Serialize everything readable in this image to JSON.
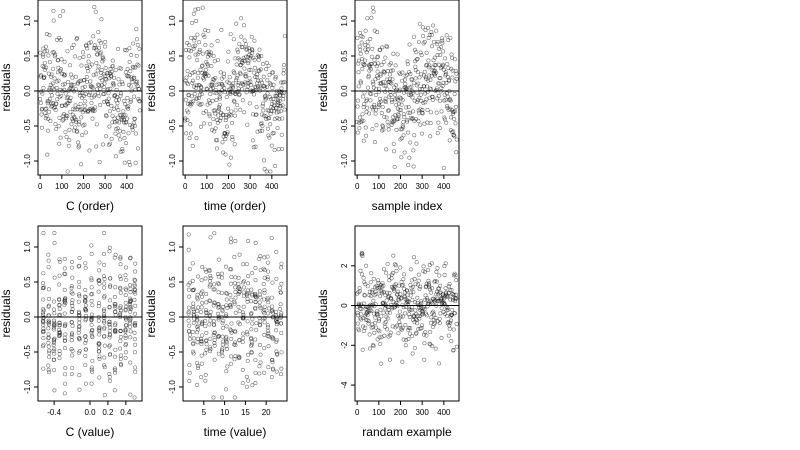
{
  "figure": {
    "background": "#ffffff",
    "point_color": "#000000",
    "point_opacity": 0.55
  },
  "chart_data": [
    {
      "type": "scatter",
      "xlabel": "C (order)",
      "ylabel": "residuals",
      "xlim": [
        -10,
        470
      ],
      "ylim": [
        -1.2,
        1.3
      ],
      "xticks": [
        0,
        100,
        200,
        300,
        400
      ],
      "xtick_labels": [
        "0",
        "100",
        "200",
        "300",
        "400"
      ],
      "yticks": [
        -1.0,
        -0.5,
        0.0,
        0.5,
        1.0
      ],
      "ytick_labels": [
        "-1.0",
        "-0.5",
        "0.0",
        "0.5",
        "1.0"
      ],
      "hline": 0,
      "grid": false,
      "generator": {
        "kind": "order",
        "n": 450,
        "xmax": 460,
        "seed": 11,
        "amp": 0.18,
        "freq": 2.2,
        "noise": 0.42,
        "ymin": -1.15,
        "ymax": 1.2
      }
    },
    {
      "type": "scatter",
      "xlabel": "time (order)",
      "ylabel": "residuals",
      "xlim": [
        -10,
        470
      ],
      "ylim": [
        -1.2,
        1.3
      ],
      "xticks": [
        0,
        100,
        200,
        300,
        400
      ],
      "xtick_labels": [
        "0",
        "100",
        "200",
        "300",
        "400"
      ],
      "yticks": [
        -1.0,
        -0.5,
        0.0,
        0.5,
        1.0
      ],
      "ytick_labels": [
        "-1.0",
        "-0.5",
        "0.0",
        "0.5",
        "1.0"
      ],
      "hline": 0,
      "grid": false,
      "generator": {
        "kind": "order",
        "n": 450,
        "xmax": 460,
        "seed": 23,
        "amp": 0.3,
        "freq": 2.0,
        "noise": 0.38,
        "ymin": -1.15,
        "ymax": 1.2
      }
    },
    {
      "type": "scatter",
      "xlabel": "sample index",
      "ylabel": "residuals",
      "xlim": [
        -10,
        470
      ],
      "ylim": [
        -1.2,
        1.3
      ],
      "xticks": [
        0,
        100,
        200,
        300,
        400
      ],
      "xtick_labels": [
        "0",
        "100",
        "200",
        "300",
        "400"
      ],
      "yticks": [
        -1.0,
        -0.5,
        0.0,
        0.5,
        1.0
      ],
      "ytick_labels": [
        "-1.0",
        "-0.5",
        "0.0",
        "0.5",
        "1.0"
      ],
      "hline": 0,
      "grid": false,
      "generator": {
        "kind": "order",
        "n": 450,
        "xmax": 460,
        "seed": 37,
        "amp": 0.22,
        "freq": 1.6,
        "noise": 0.4,
        "ymin": -1.15,
        "ymax": 1.2
      }
    },
    {
      "type": "scatter",
      "xlabel": "C (value)",
      "ylabel": "residuals",
      "xlim": [
        -0.58,
        0.58
      ],
      "ylim": [
        -1.2,
        1.3
      ],
      "xticks": [
        -0.4,
        0.0,
        0.2,
        0.4
      ],
      "xtick_labels": [
        "-0.4",
        "0.0",
        "0.2",
        "0.4"
      ],
      "yticks": [
        -1.0,
        -0.5,
        0.0,
        0.5,
        1.0
      ],
      "ytick_labels": [
        "-1.0",
        "-0.5",
        "0.0",
        "0.5",
        "1.0"
      ],
      "hline": 0,
      "grid": false,
      "generator": {
        "kind": "columns",
        "n": 420,
        "seed": 51,
        "columns": [
          -0.52,
          -0.46,
          -0.4,
          -0.34,
          -0.28,
          -0.2,
          -0.12,
          -0.05,
          0.02,
          0.1,
          0.16,
          0.22,
          0.28,
          0.34,
          0.4,
          0.45,
          0.5
        ],
        "jitter": 0.006,
        "noise": 0.45,
        "ymin": -1.15,
        "ymax": 1.2
      }
    },
    {
      "type": "scatter",
      "xlabel": "time (value)",
      "ylabel": "residuals",
      "xlim": [
        0,
        25
      ],
      "ylim": [
        -1.2,
        1.3
      ],
      "xticks": [
        5,
        10,
        15,
        20
      ],
      "xtick_labels": [
        "5",
        "10",
        "15",
        "20"
      ],
      "yticks": [
        -1.0,
        -0.5,
        0.0,
        0.5,
        1.0
      ],
      "ytick_labels": [
        "-1.0",
        "-0.5",
        "0.0",
        "0.5",
        "1.0"
      ],
      "hline": 0,
      "grid": false,
      "generator": {
        "kind": "columns",
        "n": 420,
        "seed": 67,
        "columns": [
          1.5,
          2.5,
          3.5,
          4.5,
          5.5,
          6.5,
          7.5,
          8.5,
          9.5,
          10.5,
          11.5,
          12.5,
          13.5,
          14.5,
          15.5,
          16.5,
          17.5,
          18.5,
          19.5,
          20.5,
          21.5,
          22.5,
          23.5
        ],
        "jitter": 0.18,
        "noise": 0.42,
        "ymin": -1.15,
        "ymax": 1.2
      }
    },
    {
      "type": "scatter",
      "xlabel": "randam example",
      "ylabel": "residuals",
      "xlim": [
        -10,
        470
      ],
      "ylim": [
        -4.8,
        4.0
      ],
      "xticks": [
        0,
        100,
        200,
        300,
        400
      ],
      "xtick_labels": [
        "0",
        "100",
        "200",
        "300",
        "400"
      ],
      "yticks": [
        -4,
        -2,
        0,
        2
      ],
      "ytick_labels": [
        "-4",
        "-2",
        "0",
        "2"
      ],
      "hline": 0,
      "grid": false,
      "generator": {
        "kind": "order",
        "n": 450,
        "xmax": 460,
        "seed": 83,
        "amp": 0.0,
        "freq": 1.0,
        "noise": 1.05,
        "ymin": -4.5,
        "ymax": 3.6
      }
    }
  ]
}
